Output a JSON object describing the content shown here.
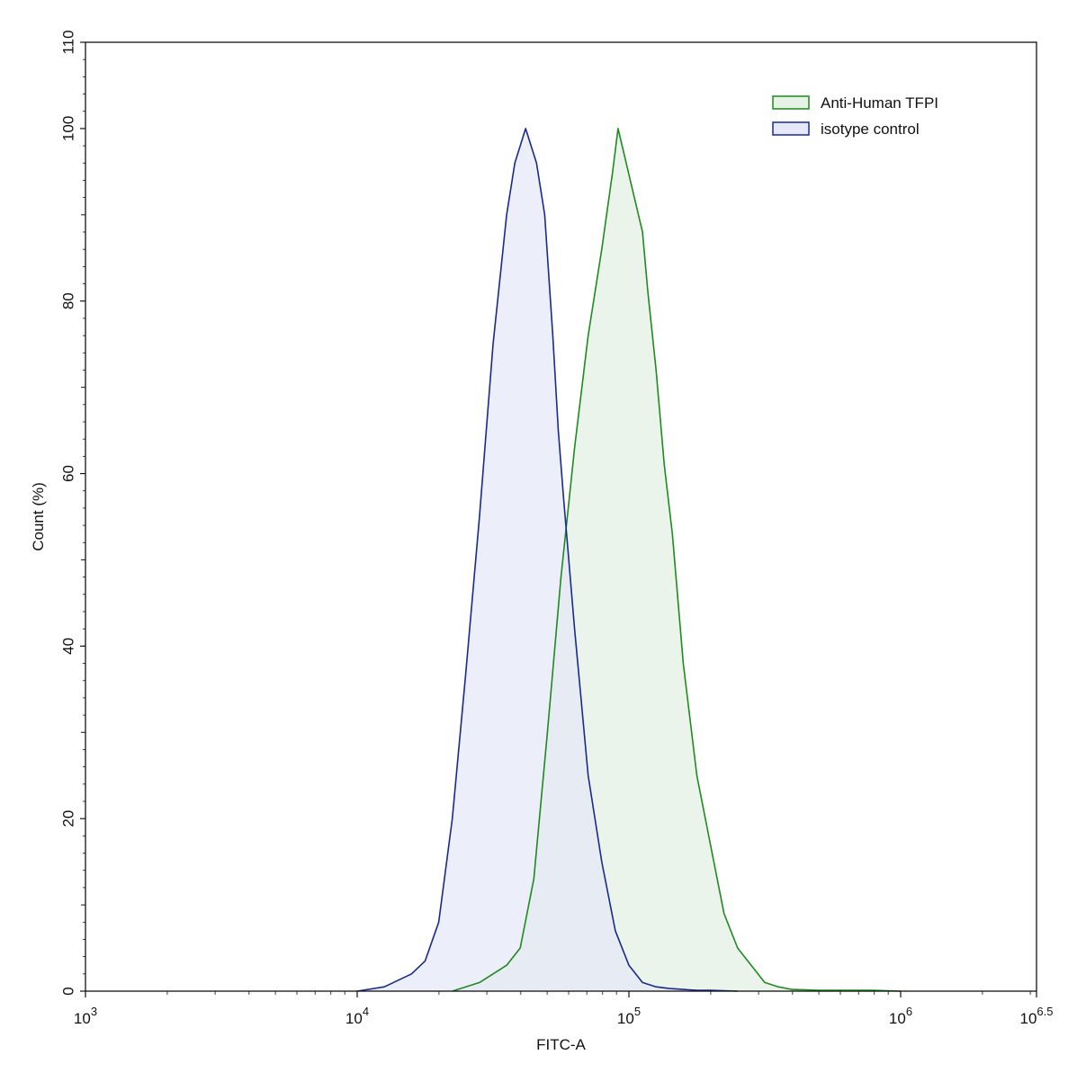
{
  "chart_data": {
    "type": "area",
    "xlabel": "FITC-A",
    "ylabel": "Count  (%)",
    "x_scale": "log10",
    "xlim_log10": [
      3,
      6.5
    ],
    "ylim": [
      0,
      110
    ],
    "x_ticks": [
      {
        "base": "10",
        "exp": "3",
        "value_log10": 3
      },
      {
        "base": "10",
        "exp": "4",
        "value_log10": 4
      },
      {
        "base": "10",
        "exp": "5",
        "value_log10": 5
      },
      {
        "base": "10",
        "exp": "6",
        "value_log10": 6
      },
      {
        "base": "10",
        "exp": "6.5",
        "value_log10": 6.5
      }
    ],
    "y_ticks": [
      "0",
      "20",
      "40",
      "60",
      "80",
      "100",
      "110"
    ],
    "y_tick_values": [
      0,
      20,
      40,
      60,
      80,
      100,
      110
    ],
    "legend_position": "top-right",
    "grid": false,
    "series": [
      {
        "name": "Anti-Human TFPI",
        "stroke": "#1f8a1f",
        "fill": "#e6f2e6",
        "x_log10": [
          4.35,
          4.45,
          4.55,
          4.6,
          4.65,
          4.7,
          4.75,
          4.8,
          4.85,
          4.9,
          4.94,
          4.96,
          4.99,
          5.02,
          5.05,
          5.07,
          5.1,
          5.13,
          5.16,
          5.2,
          5.25,
          5.3,
          5.35,
          5.4,
          5.45,
          5.5,
          5.55,
          5.6,
          5.7,
          5.8,
          5.9,
          6.0
        ],
        "y": [
          0,
          1,
          3,
          5,
          13,
          30,
          48,
          63,
          76,
          86,
          95,
          100,
          96,
          92,
          88,
          81,
          72,
          61,
          53,
          38,
          25,
          17,
          9,
          5,
          3,
          1,
          0.5,
          0.2,
          0.1,
          0.1,
          0.1,
          0
        ]
      },
      {
        "name": "isotype control",
        "stroke": "#1a2a8c",
        "fill": "#e6e8f7",
        "x_log10": [
          4.0,
          4.1,
          4.2,
          4.25,
          4.3,
          4.35,
          4.4,
          4.45,
          4.5,
          4.55,
          4.58,
          4.62,
          4.66,
          4.69,
          4.72,
          4.74,
          4.76,
          4.8,
          4.85,
          4.9,
          4.95,
          5.0,
          5.05,
          5.1,
          5.15,
          5.2,
          5.25,
          5.3,
          5.4
        ],
        "y": [
          0,
          0.5,
          2,
          3.5,
          8,
          20,
          37,
          55,
          75,
          90,
          96,
          100,
          96,
          90,
          76,
          65,
          57,
          42,
          25,
          15,
          7,
          3,
          1,
          0.5,
          0.3,
          0.2,
          0.1,
          0.1,
          0
        ]
      }
    ]
  }
}
